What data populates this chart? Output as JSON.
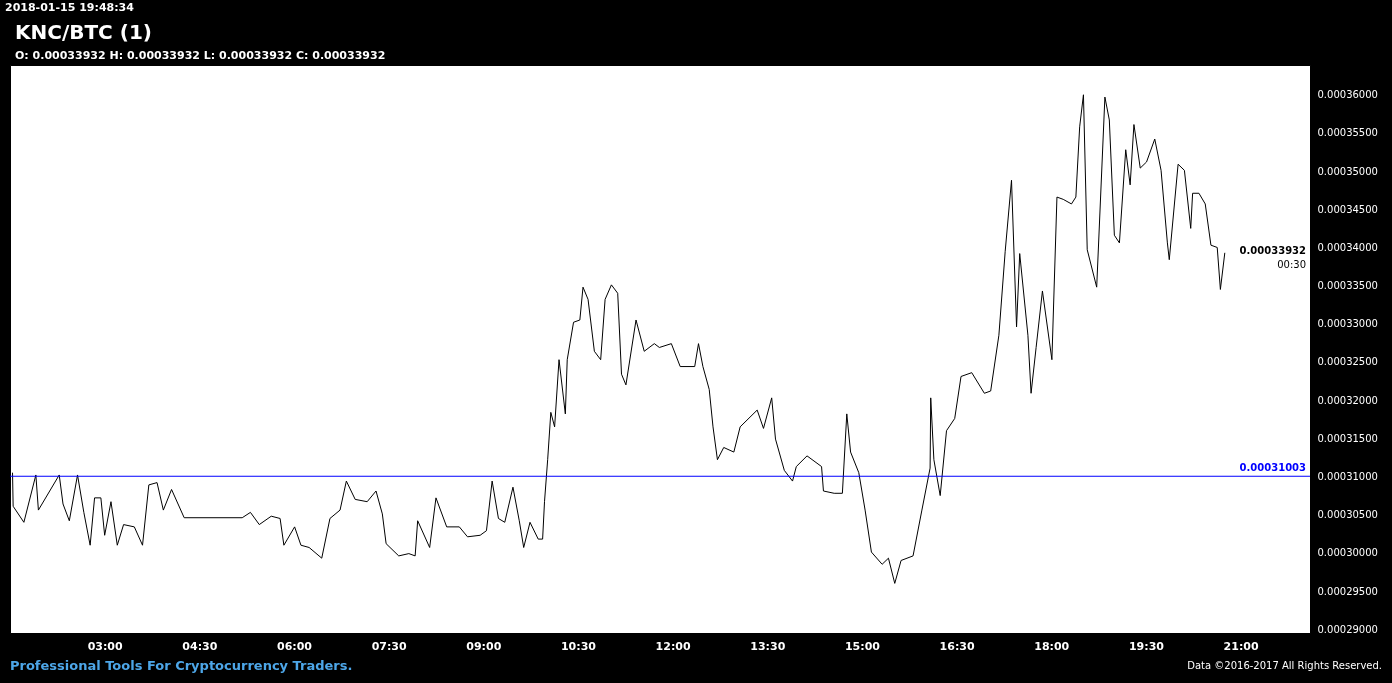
{
  "chart_data": {
    "type": "line",
    "title": "KNC/BTC (1)",
    "subtitle": "O: 0.00033932 H: 0.00033932 L: 0.00033932 C: 0.00033932",
    "annotations": [
      "2018-01-15 19:48:34",
      "Professional Tools For Cryptocurrency Traders.",
      "Data ©2016-2017 All Rights Reserved.",
      "0.00033932",
      "00:30"
    ],
    "xlim": [
      1.5,
      22.1
    ],
    "xticks": [
      {
        "value": 3,
        "label": "03:00"
      },
      {
        "value": 4.5,
        "label": "04:30"
      },
      {
        "value": 6,
        "label": "06:00"
      },
      {
        "value": 7.5,
        "label": "07:30"
      },
      {
        "value": 9,
        "label": "09:00"
      },
      {
        "value": 10.5,
        "label": "10:30"
      },
      {
        "value": 12,
        "label": "12:00"
      },
      {
        "value": 13.5,
        "label": "13:30"
      },
      {
        "value": 15,
        "label": "15:00"
      },
      {
        "value": 16.5,
        "label": "16:30"
      },
      {
        "value": 18,
        "label": "18:00"
      },
      {
        "value": 19.5,
        "label": "19:30"
      },
      {
        "value": 21,
        "label": "21:00"
      }
    ],
    "ylim": [
      0.0002895,
      0.0003639
    ],
    "yticks": [
      {
        "value": 0.00029,
        "label": "0.00029000"
      },
      {
        "value": 0.000295,
        "label": "0.00029500"
      },
      {
        "value": 0.0003,
        "label": "0.00030000"
      },
      {
        "value": 0.000305,
        "label": "0.00030500"
      },
      {
        "value": 0.00031,
        "label": "0.00031000"
      },
      {
        "value": 0.000315,
        "label": "0.00031500"
      },
      {
        "value": 0.00032,
        "label": "0.00032000"
      },
      {
        "value": 0.000325,
        "label": "0.00032500"
      },
      {
        "value": 0.00033,
        "label": "0.00033000"
      },
      {
        "value": 0.000335,
        "label": "0.00033500"
      },
      {
        "value": 0.00034,
        "label": "0.00034000"
      },
      {
        "value": 0.000345,
        "label": "0.00034500"
      },
      {
        "value": 0.00035,
        "label": "0.00035000"
      },
      {
        "value": 0.000355,
        "label": "0.00035500"
      },
      {
        "value": 0.00036,
        "label": "0.00036000"
      }
    ],
    "grid": false,
    "ref_lines": [
      {
        "axis": "y",
        "value": 0.00031003,
        "label": "0.00031003",
        "color": "#0000ff"
      }
    ],
    "series": [
      {
        "color": "#000000",
        "x": [
          1.54,
          1.55,
          1.72,
          1.91,
          1.95,
          2.28,
          2.34,
          2.44,
          2.57,
          2.67,
          2.77,
          2.84,
          2.94,
          3.0,
          3.1,
          3.2,
          3.3,
          3.47,
          3.6,
          3.7,
          3.83,
          3.93,
          4.06,
          4.26,
          5.18,
          5.31,
          5.45,
          5.64,
          5.78,
          5.84,
          6.01,
          6.11,
          6.24,
          6.44,
          6.57,
          6.73,
          6.83,
          6.97,
          7.16,
          7.3,
          7.4,
          7.46,
          7.66,
          7.82,
          7.92,
          7.96,
          8.15,
          8.25,
          8.42,
          8.62,
          8.75,
          8.95,
          9.05,
          9.14,
          9.24,
          9.34,
          9.47,
          9.57,
          9.64,
          9.74,
          9.87,
          9.94,
          9.97,
          10.02,
          10.07,
          10.13,
          10.2,
          10.3,
          10.33,
          10.43,
          10.53,
          10.58,
          10.66,
          10.76,
          10.86,
          10.93,
          11.03,
          11.13,
          11.19,
          11.26,
          11.42,
          11.55,
          11.71,
          11.79,
          11.98,
          12.12,
          12.35,
          12.41,
          12.48,
          12.58,
          12.64,
          12.71,
          12.81,
          12.97,
          13.07,
          13.34,
          13.44,
          13.57,
          13.63,
          13.77,
          13.9,
          13.96,
          14.13,
          14.36,
          14.39,
          14.56,
          14.69,
          14.76,
          14.82,
          14.95,
          15.05,
          15.15,
          15.32,
          15.42,
          15.52,
          15.62,
          15.81,
          15.95,
          16.08,
          16.09,
          16.14,
          16.24,
          16.34,
          16.47,
          16.57,
          16.74,
          16.94,
          17.04,
          17.17,
          17.27,
          17.37,
          17.45,
          17.5,
          17.63,
          17.68,
          17.76,
          17.86,
          18.01,
          18.09,
          18.19,
          18.32,
          18.39,
          18.45,
          18.51,
          18.57,
          18.72,
          18.85,
          18.92,
          19.0,
          19.08,
          19.18,
          19.25,
          19.31,
          19.41,
          19.51,
          19.64,
          19.74,
          19.84,
          19.87,
          20.01,
          20.11,
          20.21,
          20.24,
          20.34,
          20.44,
          20.53,
          20.63,
          20.68,
          20.75
        ],
        "values": [
          0.0003105,
          0.0003061,
          0.000304,
          0.0003102,
          0.0003056,
          0.0003102,
          0.0003064,
          0.0003042,
          0.0003102,
          0.0003053,
          0.000301,
          0.0003072,
          0.0003072,
          0.0003023,
          0.0003067,
          0.000301,
          0.0003037,
          0.0003034,
          0.000301,
          0.0003089,
          0.0003092,
          0.0003056,
          0.0003083,
          0.0003046,
          0.0003046,
          0.0003053,
          0.0003037,
          0.0003048,
          0.0003045,
          0.000301,
          0.0003034,
          0.000301,
          0.0003007,
          0.0002993,
          0.0003045,
          0.0003056,
          0.0003094,
          0.000307,
          0.0003067,
          0.0003081,
          0.0003051,
          0.0003012,
          0.0002996,
          0.0002999,
          0.0002996,
          0.0003042,
          0.0003007,
          0.0003072,
          0.0003034,
          0.0003034,
          0.0003021,
          0.0003023,
          0.0003029,
          0.0003094,
          0.0003045,
          0.000304,
          0.0003086,
          0.0003042,
          0.0003007,
          0.000304,
          0.0003018,
          0.0003018,
          0.0003067,
          0.0003122,
          0.0003184,
          0.0003165,
          0.0003253,
          0.0003182,
          0.0003253,
          0.0003302,
          0.0003305,
          0.0003348,
          0.0003332,
          0.0003264,
          0.0003253,
          0.0003332,
          0.0003351,
          0.000334,
          0.0003234,
          0.000322,
          0.0003305,
          0.0003264,
          0.0003274,
          0.0003269,
          0.0003274,
          0.0003244,
          0.0003244,
          0.0003274,
          0.0003244,
          0.0003214,
          0.0003165,
          0.0003122,
          0.0003138,
          0.0003132,
          0.0003165,
          0.0003187,
          0.0003163,
          0.0003203,
          0.0003149,
          0.0003108,
          0.0003094,
          0.0003113,
          0.0003127,
          0.0003113,
          0.0003081,
          0.0003078,
          0.0003078,
          0.0003182,
          0.0003132,
          0.0003105,
          0.0003056,
          0.0003001,
          0.0002985,
          0.0002993,
          0.000296,
          0.000299,
          0.0002996,
          0.0003056,
          0.0003111,
          0.0003203,
          0.0003122,
          0.0003075,
          0.000316,
          0.0003176,
          0.0003231,
          0.0003236,
          0.0003209,
          0.0003212,
          0.0003285,
          0.0003395,
          0.0003488,
          0.0003296,
          0.0003392,
          0.0003285,
          0.0003209,
          0.0003269,
          0.0003343,
          0.0003253,
          0.0003466,
          0.0003463,
          0.0003457,
          0.0003466,
          0.0003558,
          0.00036,
          0.0003397,
          0.0003348,
          0.0003597,
          0.0003567,
          0.0003416,
          0.0003406,
          0.0003528,
          0.0003482,
          0.0003561,
          0.0003504,
          0.0003512,
          0.0003542,
          0.0003501,
          0.0003406,
          0.0003384,
          0.0003509,
          0.0003501,
          0.0003425,
          0.0003471,
          0.0003471,
          0.0003457,
          0.0003403,
          0.00034,
          0.0003345,
          0.0003393
        ]
      }
    ]
  }
}
